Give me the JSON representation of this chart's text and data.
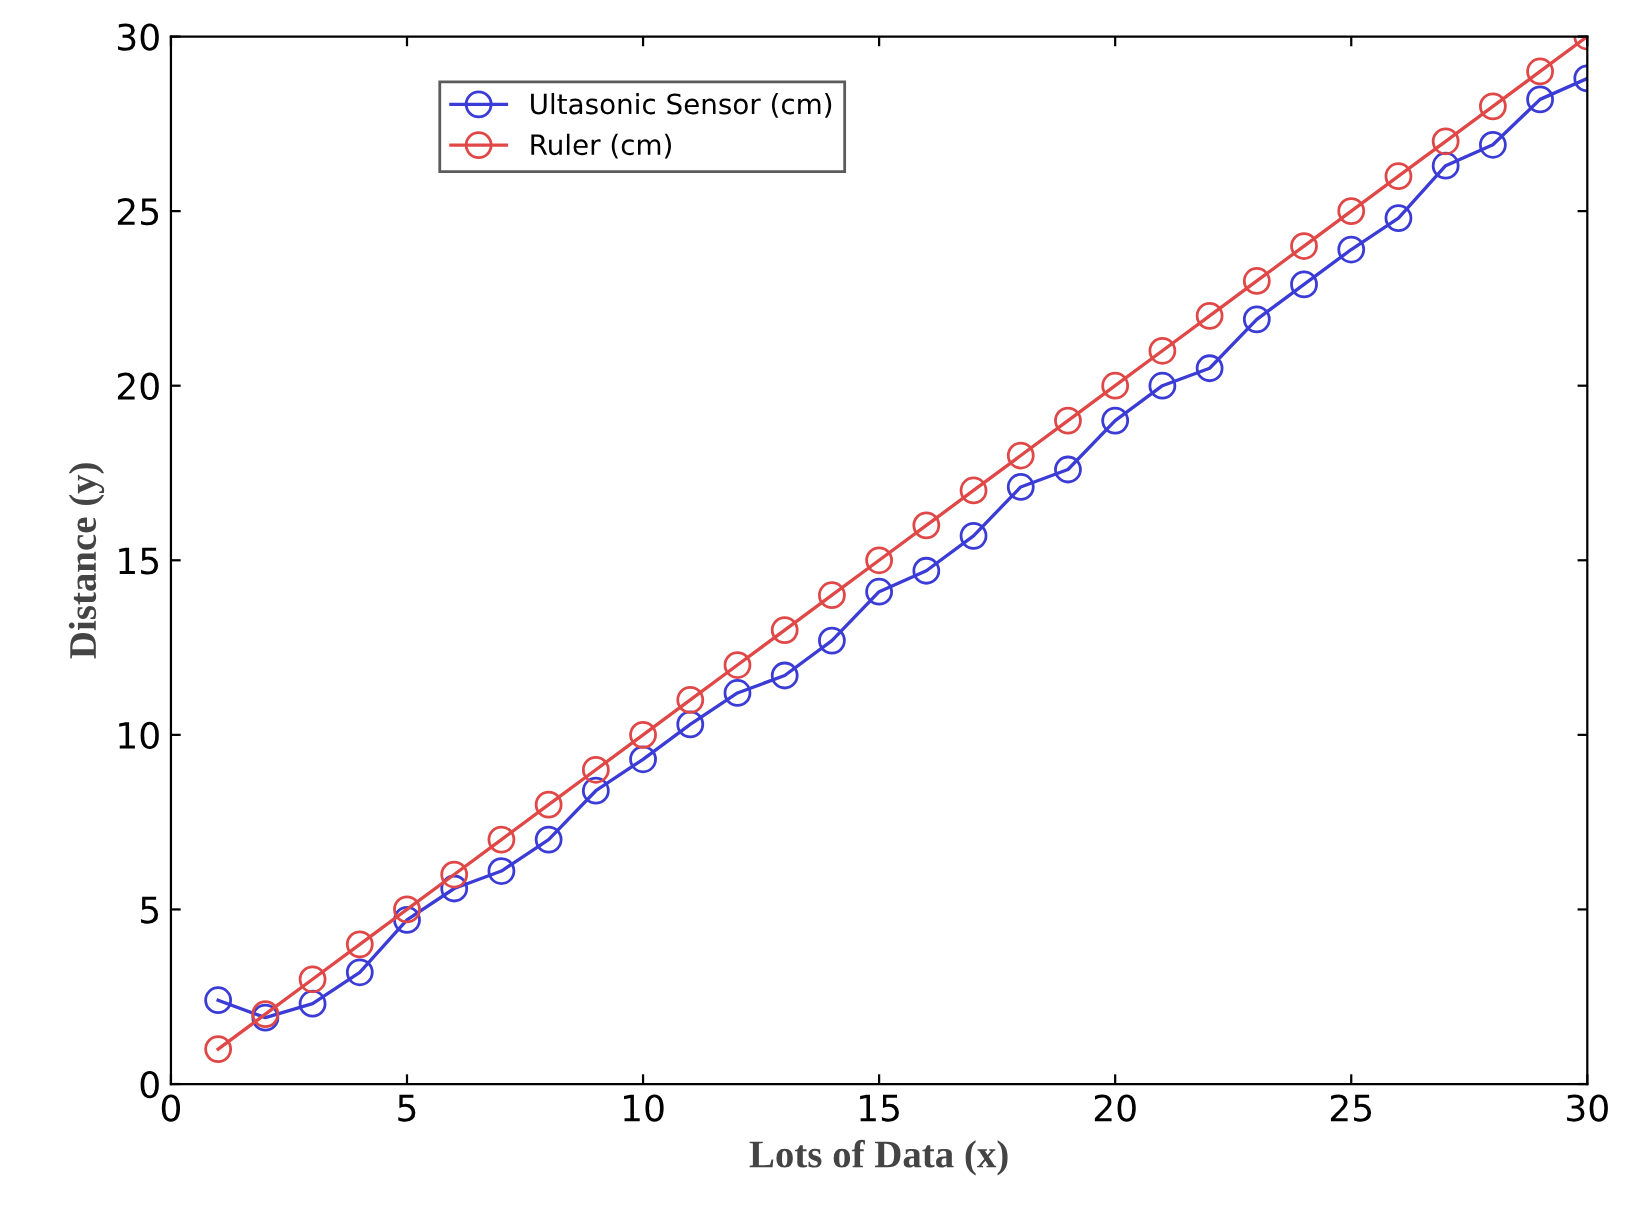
{
  "chart_data": {
    "type": "line",
    "xlabel": "Lots of Data (x)",
    "ylabel": "Distance (y)",
    "x": [
      1,
      2,
      3,
      4,
      5,
      6,
      7,
      8,
      9,
      10,
      11,
      12,
      13,
      14,
      15,
      16,
      17,
      18,
      19,
      20,
      21,
      22,
      23,
      24,
      25,
      26,
      27,
      28,
      29,
      30
    ],
    "series": [
      {
        "name": "Ultasonic Sensor (cm)",
        "color": "#3b3bd6",
        "values": [
          2.4,
          1.9,
          2.3,
          3.2,
          4.7,
          5.6,
          6.1,
          7.0,
          8.4,
          9.3,
          10.3,
          11.2,
          11.7,
          12.7,
          14.1,
          14.7,
          15.7,
          17.1,
          17.6,
          19.0,
          20.0,
          20.5,
          21.9,
          22.9,
          23.9,
          24.8,
          26.3,
          26.9,
          28.2,
          28.8
        ]
      },
      {
        "name": "Ruler (cm)",
        "color": "#e04848",
        "values": [
          1,
          2,
          3,
          4,
          5,
          6,
          7,
          8,
          9,
          10,
          11,
          12,
          13,
          14,
          15,
          16,
          17,
          18,
          19,
          20,
          21,
          22,
          23,
          24,
          25,
          26,
          27,
          28,
          29,
          30
        ]
      }
    ],
    "xlim": [
      0,
      30
    ],
    "ylim": [
      0,
      30
    ],
    "xticks": [
      0,
      5,
      10,
      15,
      20,
      25,
      30
    ],
    "yticks": [
      0,
      5,
      10,
      15,
      20,
      25,
      30
    ],
    "grid": false,
    "legend": "top left",
    "marker": "circle",
    "line_style": "solid"
  }
}
